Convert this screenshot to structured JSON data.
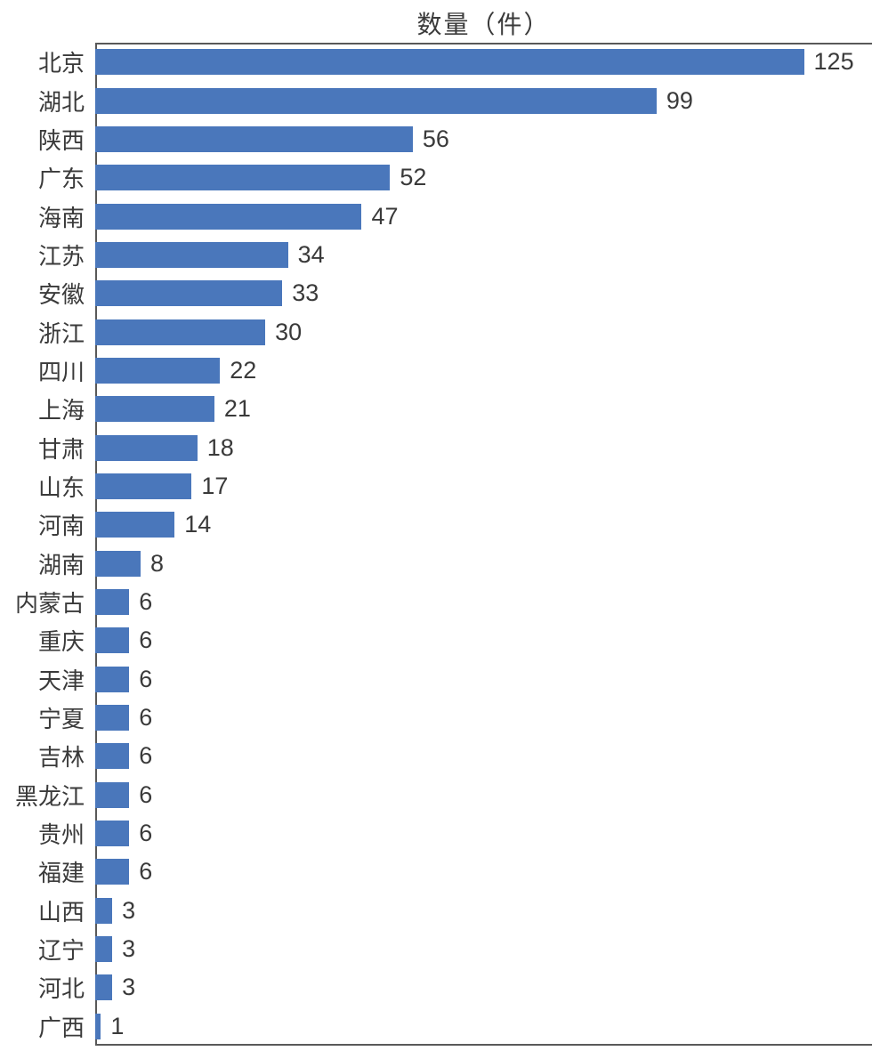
{
  "chart_data": {
    "type": "bar",
    "orientation": "horizontal",
    "title": "数量（件）",
    "categories": [
      "北京",
      "湖北",
      "陕西",
      "广东",
      "海南",
      "江苏",
      "安徽",
      "浙江",
      "四川",
      "上海",
      "甘肃",
      "山东",
      "河南",
      "湖南",
      "内蒙古",
      "重庆",
      "天津",
      "宁夏",
      "吉林",
      "黑龙江",
      "贵州",
      "福建",
      "山西",
      "辽宁",
      "河北",
      "广西"
    ],
    "values": [
      125,
      99,
      56,
      52,
      47,
      34,
      33,
      30,
      22,
      21,
      18,
      17,
      14,
      8,
      6,
      6,
      6,
      6,
      6,
      6,
      6,
      6,
      3,
      3,
      3,
      1
    ],
    "xlabel": "",
    "ylabel": "",
    "xlim": [
      0,
      137
    ],
    "grid": false,
    "legend": false,
    "data_labels": true,
    "bar_color": "#4A77BB",
    "axis_color": "#595959",
    "text_color": "#3A3A3A"
  }
}
